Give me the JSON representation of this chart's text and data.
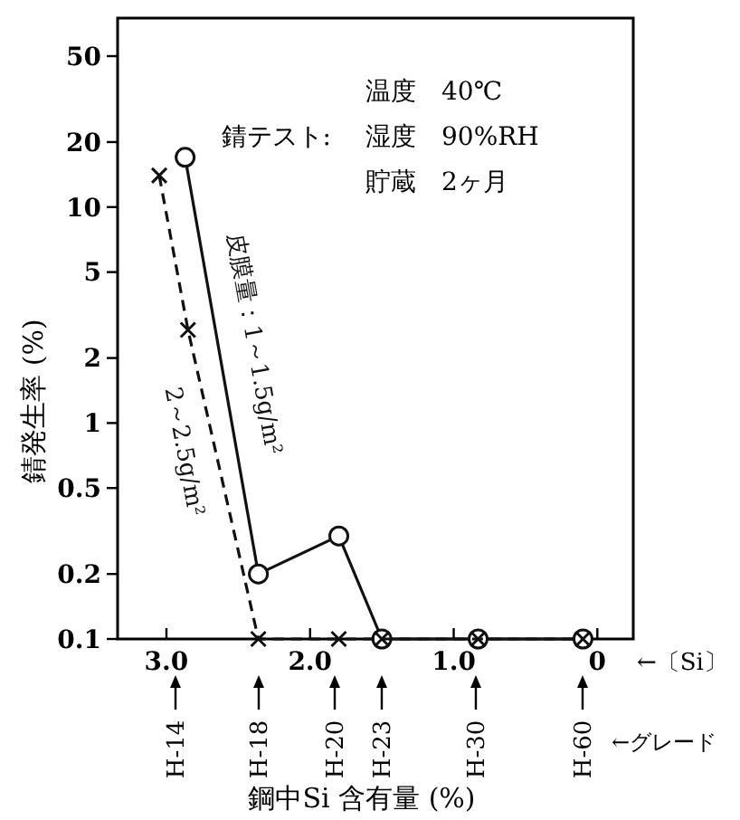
{
  "chart_data": {
    "type": "line",
    "xlabel": "鋼中Si 含有量 (%)",
    "ylabel": "錆発生率 (%)",
    "log": "y",
    "xlim": [
      3.34,
      -0.25
    ],
    "xticks": [
      {
        "value": 3,
        "label": "3.0"
      },
      {
        "value": 2,
        "label": "2.0"
      },
      {
        "value": 1,
        "label": "1.0"
      },
      0
    ],
    "ylim": [
      0.1,
      75
    ],
    "yticks": [
      0.1,
      0.2,
      0.5,
      1,
      2,
      5,
      10,
      20,
      50
    ],
    "grid": false,
    "legend": false,
    "series": [
      {
        "name": "皮膜量：1～1.5g/m²",
        "color": "#111111",
        "marker": "circle",
        "line_style": "solid",
        "x": [
          2.87,
          2.36,
          1.8,
          1.5,
          0.83,
          0.1
        ],
        "values": [
          17,
          0.2,
          0.3,
          0.1,
          0.1,
          0.1
        ]
      },
      {
        "name": "2～2.5g/m²",
        "color": "#111111",
        "marker": "cross",
        "line_style": "dashed",
        "x": [
          3.05,
          2.85,
          2.36,
          1.8,
          1.5,
          0.83,
          0.1
        ],
        "values": [
          14,
          2.7,
          0.1,
          0.1,
          0.1,
          0.1,
          0.1
        ]
      }
    ],
    "annotations": [
      "錆テスト:",
      "温度　40℃",
      "湿度　90%RH",
      "貯蔵　2ヶ月",
      "←〔Si〕",
      "←グレード",
      "H-14",
      "H-18",
      "H-20",
      "H-23",
      "H-30",
      "H-60"
    ]
  }
}
